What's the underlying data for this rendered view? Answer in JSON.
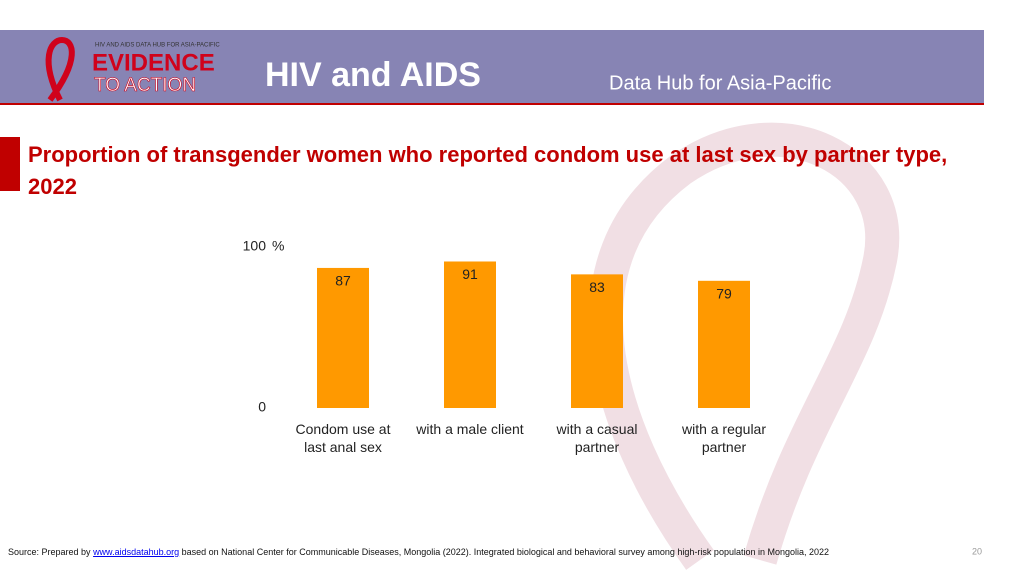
{
  "header": {
    "logo_tagline": "HIV AND AIDS DATA HUB FOR ASIA-PACIFIC",
    "logo_line1": "EVIDENCE",
    "logo_line2": "TO ACTION",
    "title": "HIV and AIDS",
    "subtitle": "Data Hub for Asia-Pacific"
  },
  "chart_data": {
    "type": "bar",
    "title": "Proportion of transgender women who reported condom use at last sex by partner type, 2022",
    "unit": "%",
    "categories": [
      "Condom use at last anal sex",
      "with a male client",
      "with a casual partner",
      "with a regular partner"
    ],
    "values": [
      87,
      91,
      83,
      79
    ],
    "color": "#ff9900",
    "ylim": [
      0,
      100
    ],
    "yticks": [
      0,
      100
    ],
    "grid": false
  },
  "source": {
    "prefix": "Source: Prepared by",
    "link": "www.aidsdatahub.org",
    "suffix": "based on National Center for Communicable Diseases, Mongolia (2022). Integrated biological and behavioral survey among high-risk population in Mongolia, 2022"
  },
  "page_number": "20"
}
